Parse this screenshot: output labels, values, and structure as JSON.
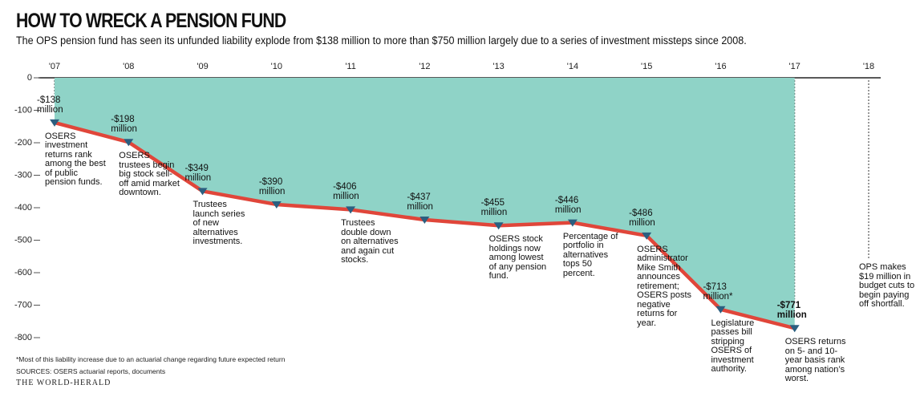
{
  "chart_data": {
    "type": "line",
    "title": "HOW TO WRECK A PENSION FUND",
    "subtitle": "The OPS pension fund has seen its unfunded liability explode from $138 million to more than $750 million largely due to a series of investment missteps since 2008.",
    "categories": [
      "'07",
      "'08",
      "'09",
      "'10",
      "'11",
      "'12",
      "'13",
      "'14",
      "'15",
      "'16",
      "'17",
      "'18"
    ],
    "series": [
      {
        "name": "Unfunded liability",
        "color": "#e0463a",
        "fill": "#8fd3c7",
        "marker_color": "#2b5f80",
        "values": [
          -138,
          -198,
          -349,
          -390,
          -406,
          -437,
          -455,
          -446,
          -486,
          -713,
          -771,
          null
        ],
        "value_labels": [
          "-$138 million",
          "-$198 million",
          "-$349 million",
          "-$390 million",
          "-$406 million",
          "-$437 million",
          "-$455 million",
          "-$446 million",
          "-$486 million",
          "-$713 million*",
          "-$771 million",
          null
        ]
      }
    ],
    "annotations": [
      "OSERS investment returns rank among the best of public pension funds.",
      "OSERS trustees begin big stock sell-off amid market downtown.",
      "Trustees launch series of new alternatives investments.",
      null,
      "Trustees double down on alternatives and again cut stocks.",
      null,
      "OSERS stock holdings now among lowest of any pension fund.",
      "Percentage of portfolio in alternatives tops 50 percent.",
      "OSERS administrator Mike Smith announces retirement; OSERS posts negative returns for year.",
      "Legislature passes bill stripping OSERS of investment authority.",
      "OSERS returns on 5- and 10-year basis rank among nation’s worst.",
      "OPS makes $19 million in budget cuts to begin paying off shortfall."
    ],
    "ylim": [
      -800,
      0
    ],
    "yticks": [
      0,
      -100,
      -200,
      -300,
      -400,
      -500,
      -600,
      -700,
      -800
    ],
    "footnote": "*Most of this liability increase due to an actuarial change regarding future expected return",
    "sources": "SOURCES: OSERS actuarial reports, documents",
    "credit": "THE WORLD-HERALD"
  }
}
